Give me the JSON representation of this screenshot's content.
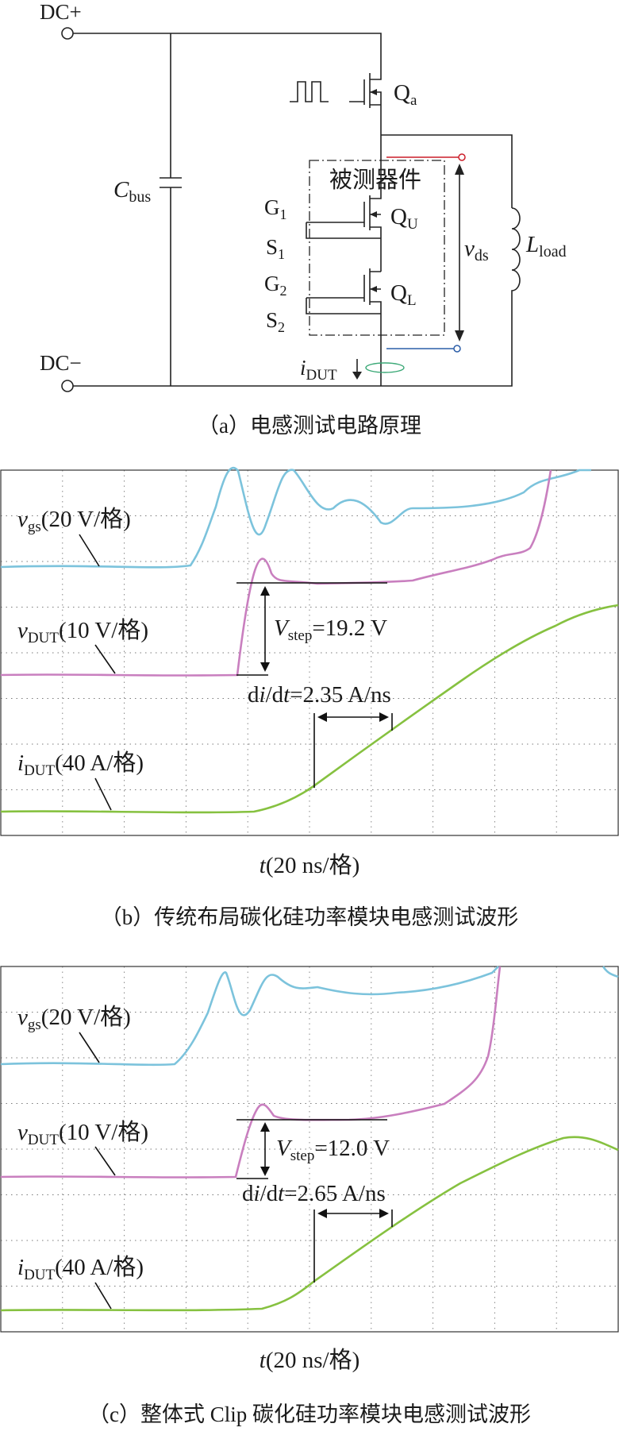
{
  "circuit": {
    "dc_plus": "DC+",
    "dc_minus": "DC−",
    "cbus_main": "C",
    "cbus_sub": "bus",
    "qa_main": "Q",
    "qa_sub": "a",
    "dut_label": "被测器件",
    "qu_main": "Q",
    "qu_sub": "U",
    "ql_main": "Q",
    "ql_sub": "L",
    "g1_main": "G",
    "g1_sub": "1",
    "s1_main": "S",
    "s1_sub": "1",
    "g2_main": "G",
    "g2_sub": "2",
    "s2_main": "S",
    "s2_sub": "2",
    "vds_main": "v",
    "vds_sub": "ds",
    "lload_main": "L",
    "lload_sub": "load",
    "idut_main": "i",
    "idut_sub": "DUT",
    "colors": {
      "probe_plus": "#cc1f2a",
      "probe_minus": "#2c5ea8",
      "ct": "#3aa876"
    }
  },
  "captions": {
    "a": "（a）电感测试电路原理",
    "b": "（b）传统布局碳化硅功率模块电感测试波形",
    "c": "（c）整体式 Clip 碳化硅功率模块电感测试波形"
  },
  "waveforms": {
    "b": {
      "vgs_main": "v",
      "vgs_sub": "gs",
      "vgs_scale": "(20 V/格)",
      "vdut_main": "v",
      "vdut_sub": "DUT",
      "vdut_scale": "(10 V/格)",
      "idut_main": "i",
      "idut_sub": "DUT",
      "idut_scale": "(40 A/格)",
      "vstep_main": "V",
      "vstep_sub": "step",
      "vstep_value": "=19.2 V",
      "didt_d1": "d",
      "didt_i": "i",
      "didt_slash": "/d",
      "didt_t": "t",
      "didt_value": "=2.35 A/ns",
      "time_main": "t",
      "time_scale": "(20 ns/格)"
    },
    "c": {
      "vgs_main": "v",
      "vgs_sub": "gs",
      "vgs_scale": "(20 V/格)",
      "vdut_main": "v",
      "vdut_sub": "DUT",
      "vdut_scale": "(10 V/格)",
      "idut_main": "i",
      "idut_sub": "DUT",
      "idut_scale": "(40 A/格)",
      "vstep_main": "V",
      "vstep_sub": "step",
      "vstep_value": "=12.0 V",
      "didt_d1": "d",
      "didt_i": "i",
      "didt_slash": "/d",
      "didt_t": "t",
      "didt_value": "=2.65 A/ns",
      "time_main": "t",
      "time_scale": "(20 ns/格)"
    },
    "colors": {
      "vgs": "#7cc3dc",
      "vdut": "#c97fbf",
      "idut": "#86c140",
      "grid": "#7a7a7a"
    }
  }
}
